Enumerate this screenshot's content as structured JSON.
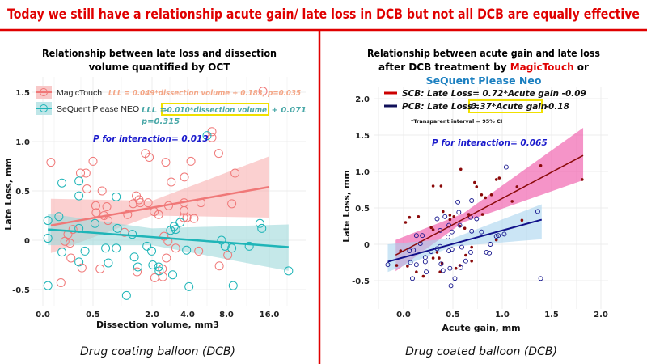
{
  "header": {
    "title": "Today we still have a relationship acute gain/ late loss in DCB but not all DCB are equally effective",
    "color": "#e00000"
  },
  "left_panel": {
    "title_line1": "Relationship between late loss and dissection",
    "title_line2": "volume quantified by OCT",
    "caption": "Drug coating balloon (DCB)",
    "eq_magictouch": "LLL = 0.049*dissection volume + 0.183, p=0.035",
    "eq_sequent_a": "LLL = ",
    "eq_sequent_b": "-0.010*dissection volume",
    "eq_sequent_c": " + 0.071",
    "eq_sequent_p": "p=0.315",
    "p_interaction": "P for interaction= 0.013"
  },
  "right_panel": {
    "title_line1": "Relationship between acute gain and late loss",
    "title_line2a": "after DCB treatment by ",
    "title_line2b": "MagicTouch",
    "title_line2c": " or",
    "title_line3": "SeQuent Please Neo",
    "caption": "Drug coated balloon (DCB)",
    "legend_scb": "SCB: Late Loss= 0.72*Acute gain -0.09",
    "legend_pcb_a": "PCB: Late Loss= ",
    "legend_pcb_b": "0.37*Acute gain",
    "legend_pcb_c": " -0.18",
    "note": "*Transparent interval = 95% CI",
    "p_interaction": "P for interaction= 0.065"
  },
  "chart_data": [
    {
      "type": "scatter",
      "xlabel": "Dissection volume, mm3",
      "ylabel": "Late Loss, mm",
      "x_ticks": [
        "0.0",
        "0.5",
        "2.0",
        "4.0",
        "8.0",
        "16.0"
      ],
      "y_ticks": [
        "-0.5",
        "0",
        "0.5",
        "1.0",
        "1.5"
      ],
      "ylim": [
        -0.65,
        1.6
      ],
      "grid": true,
      "legend_position": "top-left",
      "series": [
        {
          "name": "MagicTouch",
          "color": "#f07878",
          "points": [
            [
              0.08,
              0.79
            ],
            [
              0.375,
              0.68
            ],
            [
              0.43,
              0.68
            ],
            [
              0.5,
              0.8
            ],
            [
              0.44,
              0.52
            ],
            [
              0.73,
              0.5
            ],
            [
              0.57,
              0.35
            ],
            [
              0.58,
              0.28
            ],
            [
              0.85,
              0.34
            ],
            [
              0.78,
              0.25
            ],
            [
              0.88,
              0.2
            ],
            [
              1.83,
              0.88
            ],
            [
              1.93,
              0.84
            ],
            [
              2.77,
              0.79
            ],
            [
              4.34,
              0.8
            ],
            [
              7.2,
              0.88
            ],
            [
              3.08,
              0.59
            ],
            [
              3.82,
              0.64
            ],
            [
              9.6,
              0.68
            ],
            [
              9.0,
              0.37
            ],
            [
              1.6,
              0.45
            ],
            [
              1.67,
              0.41
            ],
            [
              1.7,
              0.38
            ],
            [
              1.9,
              0.38
            ],
            [
              1.52,
              0.37
            ],
            [
              1.38,
              0.26
            ],
            [
              2.12,
              0.29
            ],
            [
              2.37,
              0.26
            ],
            [
              2.93,
              0.35
            ],
            [
              3.8,
              0.38
            ],
            [
              3.8,
              0.3
            ],
            [
              3.78,
              0.23
            ],
            [
              3.96,
              0.23
            ],
            [
              4.66,
              0.22
            ],
            [
              5.37,
              0.38
            ],
            [
              2.67,
              0.04
            ],
            [
              2.9,
              -0.01
            ],
            [
              1.3,
              0.08
            ],
            [
              0.22,
              -0.01
            ],
            [
              0.25,
              0.06
            ],
            [
              0.27,
              -0.03
            ],
            [
              0.3,
              0.11
            ],
            [
              0.28,
              -0.18
            ],
            [
              0.39,
              -0.28
            ],
            [
              0.68,
              -0.29
            ],
            [
              0.18,
              -0.43
            ],
            [
              2.81,
              -0.18
            ],
            [
              1.62,
              -0.32
            ],
            [
              2.15,
              -0.38
            ],
            [
              2.61,
              -0.37
            ],
            [
              2.58,
              -0.29
            ],
            [
              5.14,
              -0.11
            ],
            [
              7.26,
              -0.26
            ],
            [
              8.25,
              -0.15
            ],
            [
              3.33,
              -0.08
            ],
            [
              6.5,
              1.1
            ],
            [
              6.5,
              1.04
            ],
            [
              14.8,
              1.51
            ]
          ],
          "fit": {
            "x": [
              0.08,
              16.0
            ],
            "y": [
              0.15,
              0.54
            ]
          },
          "ci_lower": [
            [
              0.08,
              -0.13
            ],
            [
              2.0,
              0.25
            ],
            [
              16.0,
              0.23
            ]
          ],
          "ci_upper": [
            [
              0.08,
              0.42
            ],
            [
              2.0,
              0.4
            ],
            [
              16.0,
              0.85
            ]
          ]
        },
        {
          "name": "SeQuent Please NEO",
          "color": "#1fb5b8",
          "points": [
            [
              0.05,
              0.2
            ],
            [
              0.05,
              0.02
            ],
            [
              0.05,
              -0.46
            ],
            [
              0.19,
              0.58
            ],
            [
              0.36,
              0.45
            ],
            [
              0.36,
              0.6
            ],
            [
              0.36,
              0.12
            ],
            [
              0.16,
              0.24
            ],
            [
              0.19,
              -0.12
            ],
            [
              0.36,
              -0.22
            ],
            [
              0.42,
              -0.11
            ],
            [
              0.55,
              0.17
            ],
            [
              0.82,
              -0.08
            ],
            [
              0.89,
              -0.23
            ],
            [
              1.09,
              0.44
            ],
            [
              1.12,
              0.12
            ],
            [
              1.09,
              -0.08
            ],
            [
              1.5,
              0.06
            ],
            [
              1.55,
              -0.17
            ],
            [
              1.64,
              -0.27
            ],
            [
              1.35,
              -0.56
            ],
            [
              1.87,
              -0.06
            ],
            [
              1.99,
              -0.11
            ],
            [
              2.04,
              -0.25
            ],
            [
              2.37,
              -0.27
            ],
            [
              2.4,
              -0.31
            ],
            [
              3.16,
              -0.35
            ],
            [
              3.04,
              0.1
            ],
            [
              3.24,
              0.14
            ],
            [
              3.33,
              0.11
            ],
            [
              3.58,
              0.18
            ],
            [
              3.94,
              -0.1
            ],
            [
              4.14,
              -0.47
            ],
            [
              7.49,
              0.0
            ],
            [
              7.86,
              -0.06
            ],
            [
              9.0,
              -0.08
            ],
            [
              9.25,
              -0.46
            ],
            [
              12.25,
              -0.06
            ],
            [
              14.25,
              0.17
            ],
            [
              14.6,
              0.12
            ],
            [
              19.6,
              -0.31
            ],
            [
              6.0,
              1.06
            ]
          ],
          "fit": {
            "x": [
              0.05,
              19.6
            ],
            "y": [
              0.11,
              -0.07
            ]
          },
          "ci_lower": [
            [
              0.05,
              -0.05
            ],
            [
              2.0,
              -0.05
            ],
            [
              19.6,
              -0.31
            ]
          ],
          "ci_upper": [
            [
              0.05,
              0.27
            ],
            [
              2.0,
              0.12
            ],
            [
              19.6,
              0.16
            ]
          ]
        }
      ]
    },
    {
      "type": "scatter",
      "xlabel": "Acute gain, mm",
      "ylabel": "Late Loss, mm",
      "x_ticks": [
        "0.0",
        "0.5",
        "1.0",
        "1.5",
        "2.0"
      ],
      "y_ticks": [
        "-0.5",
        "0",
        "0.5",
        "1.0",
        "1.5",
        "2.0"
      ],
      "xlim": [
        -0.27,
        2.1
      ],
      "ylim": [
        -0.85,
        2.15
      ],
      "grid": true,
      "legend_position": "top-left",
      "series": [
        {
          "name": "SCB",
          "color": "#8b0a0a",
          "band_color": "#f05aaa",
          "points": [
            [
              0.02,
              0.3
            ],
            [
              0.06,
              0.37
            ],
            [
              0.15,
              0.38
            ],
            [
              0.3,
              0.8
            ],
            [
              0.38,
              0.8
            ],
            [
              0.4,
              0.45
            ],
            [
              0.58,
              1.03
            ],
            [
              0.72,
              0.85
            ],
            [
              0.74,
              0.79
            ],
            [
              0.94,
              0.89
            ],
            [
              0.97,
              0.91
            ],
            [
              0.79,
              0.68
            ],
            [
              0.83,
              0.64
            ],
            [
              0.89,
              0.68
            ],
            [
              1.15,
              0.79
            ],
            [
              1.1,
              0.59
            ],
            [
              1.39,
              1.08
            ],
            [
              1.81,
              0.89
            ],
            [
              0.28,
              0.23
            ],
            [
              0.3,
              0.2
            ],
            [
              0.47,
              0.34
            ],
            [
              0.47,
              0.4
            ],
            [
              0.51,
              0.38
            ],
            [
              0.57,
              0.25
            ],
            [
              0.62,
              0.22
            ],
            [
              0.66,
              0.41
            ],
            [
              0.8,
              0.41
            ],
            [
              0.04,
              -0.3
            ],
            [
              0.13,
              -0.38
            ],
            [
              0.2,
              -0.44
            ],
            [
              0.3,
              -0.19
            ],
            [
              0.36,
              -0.19
            ],
            [
              0.37,
              -0.38
            ],
            [
              0.39,
              -0.26
            ],
            [
              0.57,
              -0.29
            ],
            [
              0.53,
              -0.33
            ],
            [
              0.63,
              -0.15
            ],
            [
              0.69,
              -0.04
            ],
            [
              0.69,
              -0.23
            ],
            [
              -0.03,
              -0.09
            ],
            [
              -0.07,
              -0.29
            ],
            [
              0.34,
              -0.11
            ],
            [
              1.2,
              0.33
            ],
            [
              0.94,
              0.06
            ]
          ],
          "fit": {
            "slope": 0.72,
            "intercept": -0.09,
            "x": [
              -0.08,
              1.82
            ]
          },
          "ci_lower": [
            [
              -0.08,
              -0.37
            ],
            [
              0.6,
              0.3
            ],
            [
              1.82,
              0.88
            ]
          ],
          "ci_upper": [
            [
              -0.08,
              0.06
            ],
            [
              0.6,
              0.42
            ],
            [
              1.82,
              1.6
            ]
          ]
        },
        {
          "name": "PCB",
          "color": "#10108a",
          "band_color": "#a8d4ee",
          "points": [
            [
              -0.16,
              -0.28
            ],
            [
              0.09,
              -0.47
            ],
            [
              0.07,
              -0.25
            ],
            [
              0.13,
              -0.28
            ],
            [
              0.06,
              -0.09
            ],
            [
              0.1,
              -0.08
            ],
            [
              0.13,
              0.12
            ],
            [
              0.19,
              0.12
            ],
            [
              0.17,
              0.01
            ],
            [
              0.22,
              -0.18
            ],
            [
              0.22,
              -0.24
            ],
            [
              0.23,
              -0.38
            ],
            [
              0.34,
              0.35
            ],
            [
              0.37,
              0.19
            ],
            [
              0.42,
              0.38
            ],
            [
              0.34,
              -0.06
            ],
            [
              0.37,
              -0.03
            ],
            [
              0.38,
              -0.27
            ],
            [
              0.4,
              -0.36
            ],
            [
              0.45,
              0.1
            ],
            [
              0.46,
              0.26
            ],
            [
              0.46,
              -0.09
            ],
            [
              0.47,
              -0.33
            ],
            [
              0.49,
              0.17
            ],
            [
              0.48,
              -0.57
            ],
            [
              0.49,
              -0.07
            ],
            [
              0.52,
              -0.47
            ],
            [
              0.55,
              0.58
            ],
            [
              0.56,
              0.44
            ],
            [
              0.57,
              0.26
            ],
            [
              0.58,
              -0.32
            ],
            [
              0.59,
              -0.04
            ],
            [
              0.68,
              0.37
            ],
            [
              0.69,
              0.6
            ],
            [
              0.69,
              0.18
            ],
            [
              0.68,
              -0.11
            ],
            [
              0.63,
              -0.23
            ],
            [
              0.74,
              0.35
            ],
            [
              0.79,
              0.17
            ],
            [
              0.84,
              -0.11
            ],
            [
              0.87,
              -0.12
            ],
            [
              0.88,
              0.0
            ],
            [
              0.94,
              0.11
            ],
            [
              0.96,
              0.12
            ],
            [
              1.02,
              0.14
            ],
            [
              1.04,
              1.06
            ],
            [
              1.36,
              0.45
            ],
            [
              1.39,
              -0.47
            ],
            [
              0.28,
              -0.1
            ]
          ],
          "fit": {
            "slope": 0.37,
            "intercept": -0.18,
            "x": [
              -0.16,
              1.4
            ]
          },
          "ci_lower": [
            [
              -0.16,
              -0.38
            ],
            [
              0.5,
              -0.03
            ],
            [
              1.4,
              0.07
            ]
          ],
          "ci_upper": [
            [
              -0.16,
              0.0
            ],
            [
              0.5,
              0.08
            ],
            [
              1.4,
              0.55
            ]
          ]
        }
      ]
    }
  ]
}
